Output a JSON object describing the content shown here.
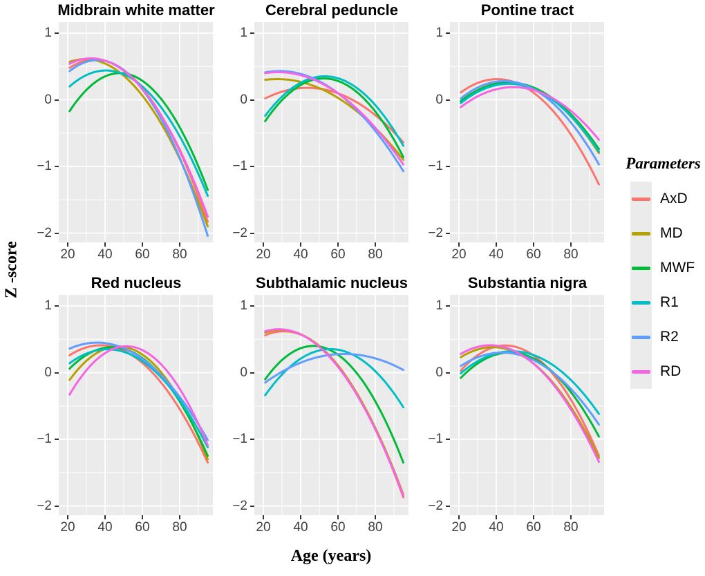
{
  "figure": {
    "background": "#ffffff",
    "panel_background": "#EBEBEB",
    "grid_color": "#FFFFFF",
    "tick_text_color": "#404040",
    "xlabel": "Age (years)",
    "ylabel": "Z -score"
  },
  "chart_data": {
    "type": "line",
    "title": "",
    "xlabel": "Age (years)",
    "ylabel": "Z -score",
    "legend_title": "Parameters",
    "legend_position": "right",
    "grid": true,
    "x_range_data": [
      21,
      95
    ],
    "xlim": [
      15.2,
      97.8
    ],
    "ylim": [
      -2.15,
      1.17
    ],
    "x_ticks": [
      20,
      40,
      60,
      80
    ],
    "x_minor_ticks": [
      30,
      50,
      70,
      90
    ],
    "y_ticks": [
      1,
      0,
      -1,
      -2
    ],
    "y_tick_labels": [
      "1",
      "0",
      "−1",
      "−2"
    ],
    "y_minor_ticks": [
      0.5,
      -0.5,
      -1.5
    ],
    "series_names": [
      "AxD",
      "MD",
      "MWF",
      "R1",
      "R2",
      "RD"
    ],
    "colors": {
      "AxD": "#F8766D",
      "MD": "#B79F00",
      "MWF": "#00BA38",
      "R1": "#00BFC4",
      "R2": "#619CFF",
      "RD": "#F564E3"
    },
    "point_format": "quadratic fit through [age, z-score] control points: start, peak, end",
    "panels": [
      {
        "title": "Midbrain white matter",
        "series": [
          {
            "name": "AxD",
            "points": [
              [
                21,
                0.48
              ],
              [
                32,
                0.6
              ],
              [
                95,
                -1.83
              ]
            ]
          },
          {
            "name": "MD",
            "points": [
              [
                21,
                0.57
              ],
              [
                30,
                0.61
              ],
              [
                95,
                -1.9
              ]
            ]
          },
          {
            "name": "MWF",
            "points": [
              [
                21,
                -0.17
              ],
              [
                47,
                0.4
              ],
              [
                95,
                -1.35
              ]
            ]
          },
          {
            "name": "R1",
            "points": [
              [
                21,
                0.2
              ],
              [
                40,
                0.44
              ],
              [
                95,
                -1.44
              ]
            ]
          },
          {
            "name": "R2",
            "points": [
              [
                21,
                0.43
              ],
              [
                33,
                0.59
              ],
              [
                95,
                -2.04
              ]
            ]
          },
          {
            "name": "RD",
            "points": [
              [
                21,
                0.54
              ],
              [
                31,
                0.62
              ],
              [
                95,
                -1.75
              ]
            ]
          }
        ]
      },
      {
        "title": "Cerebral peduncle",
        "series": [
          {
            "name": "AxD",
            "points": [
              [
                21,
                0.02
              ],
              [
                44,
                0.18
              ],
              [
                95,
                -0.64
              ]
            ]
          },
          {
            "name": "MD",
            "points": [
              [
                21,
                0.3
              ],
              [
                29,
                0.31
              ],
              [
                95,
                -0.9
              ]
            ]
          },
          {
            "name": "MWF",
            "points": [
              [
                21,
                -0.32
              ],
              [
                52,
                0.32
              ],
              [
                95,
                -0.86
              ]
            ]
          },
          {
            "name": "R1",
            "points": [
              [
                21,
                -0.24
              ],
              [
                55,
                0.35
              ],
              [
                95,
                -0.69
              ]
            ]
          },
          {
            "name": "R2",
            "points": [
              [
                21,
                0.41
              ],
              [
                27,
                0.43
              ],
              [
                95,
                -1.07
              ]
            ]
          },
          {
            "name": "RD",
            "points": [
              [
                21,
                0.4
              ],
              [
                24,
                0.41
              ],
              [
                95,
                -0.97
              ]
            ]
          }
        ]
      },
      {
        "title": "Pontine tract",
        "series": [
          {
            "name": "AxD",
            "points": [
              [
                21,
                0.11
              ],
              [
                40,
                0.31
              ],
              [
                95,
                -1.27
              ]
            ]
          },
          {
            "name": "MD",
            "points": [
              [
                21,
                -0.02
              ],
              [
                46,
                0.26
              ],
              [
                95,
                -0.8
              ]
            ]
          },
          {
            "name": "MWF",
            "points": [
              [
                21,
                -0.02
              ],
              [
                47,
                0.26
              ],
              [
                95,
                -0.74
              ]
            ]
          },
          {
            "name": "R1",
            "points": [
              [
                21,
                -0.05
              ],
              [
                47,
                0.24
              ],
              [
                95,
                -0.78
              ]
            ]
          },
          {
            "name": "R2",
            "points": [
              [
                21,
                0.02
              ],
              [
                43,
                0.28
              ],
              [
                95,
                -0.97
              ]
            ]
          },
          {
            "name": "RD",
            "points": [
              [
                21,
                -0.11
              ],
              [
                49,
                0.19
              ],
              [
                95,
                -0.6
              ]
            ]
          }
        ]
      },
      {
        "title": "Red nucleus",
        "series": [
          {
            "name": "AxD",
            "points": [
              [
                21,
                0.26
              ],
              [
                38,
                0.41
              ],
              [
                95,
                -1.35
              ]
            ]
          },
          {
            "name": "MD",
            "points": [
              [
                21,
                -0.11
              ],
              [
                49,
                0.39
              ],
              [
                95,
                -1.3
              ]
            ]
          },
          {
            "name": "MWF",
            "points": [
              [
                21,
                0.06
              ],
              [
                45,
                0.38
              ],
              [
                95,
                -1.25
              ]
            ]
          },
          {
            "name": "R1",
            "points": [
              [
                21,
                0.14
              ],
              [
                42,
                0.35
              ],
              [
                95,
                -1.12
              ]
            ]
          },
          {
            "name": "R2",
            "points": [
              [
                21,
                0.36
              ],
              [
                35,
                0.45
              ],
              [
                95,
                -1.01
              ]
            ]
          },
          {
            "name": "RD",
            "points": [
              [
                21,
                -0.33
              ],
              [
                54,
                0.39
              ],
              [
                95,
                -1.09
              ]
            ]
          }
        ]
      },
      {
        "title": "Subthalamic nucleus",
        "series": [
          {
            "name": "AxD",
            "points": [
              [
                21,
                0.56
              ],
              [
                31,
                0.62
              ],
              [
                95,
                -1.87
              ]
            ]
          },
          {
            "name": "MD",
            "points": [
              [
                21,
                0.6
              ],
              [
                30,
                0.64
              ],
              [
                95,
                -1.83
              ]
            ]
          },
          {
            "name": "MWF",
            "points": [
              [
                21,
                -0.1
              ],
              [
                47,
                0.4
              ],
              [
                95,
                -1.35
              ]
            ]
          },
          {
            "name": "R1",
            "points": [
              [
                21,
                -0.34
              ],
              [
                58,
                0.35
              ],
              [
                95,
                -0.52
              ]
            ]
          },
          {
            "name": "R2",
            "points": [
              [
                21,
                -0.15
              ],
              [
                63,
                0.28
              ],
              [
                95,
                0.04
              ]
            ]
          },
          {
            "name": "RD",
            "points": [
              [
                21,
                0.62
              ],
              [
                29,
                0.65
              ],
              [
                95,
                -1.85
              ]
            ]
          }
        ]
      },
      {
        "title": "Substantia nigra",
        "series": [
          {
            "name": "AxD",
            "points": [
              [
                21,
                0.03
              ],
              [
                48,
                0.4
              ],
              [
                95,
                -1.25
              ]
            ]
          },
          {
            "name": "MD",
            "points": [
              [
                21,
                0.23
              ],
              [
                40,
                0.38
              ],
              [
                95,
                -1.28
              ]
            ]
          },
          {
            "name": "MWF",
            "points": [
              [
                21,
                -0.08
              ],
              [
                46,
                0.3
              ],
              [
                95,
                -0.96
              ]
            ]
          },
          {
            "name": "R1",
            "points": [
              [
                21,
                -0.01
              ],
              [
                48,
                0.32
              ],
              [
                95,
                -0.62
              ]
            ]
          },
          {
            "name": "R2",
            "points": [
              [
                21,
                0.1
              ],
              [
                44,
                0.3
              ],
              [
                95,
                -0.78
              ]
            ]
          },
          {
            "name": "RD",
            "points": [
              [
                21,
                0.28
              ],
              [
                36,
                0.41
              ],
              [
                95,
                -1.34
              ]
            ]
          }
        ]
      }
    ]
  }
}
